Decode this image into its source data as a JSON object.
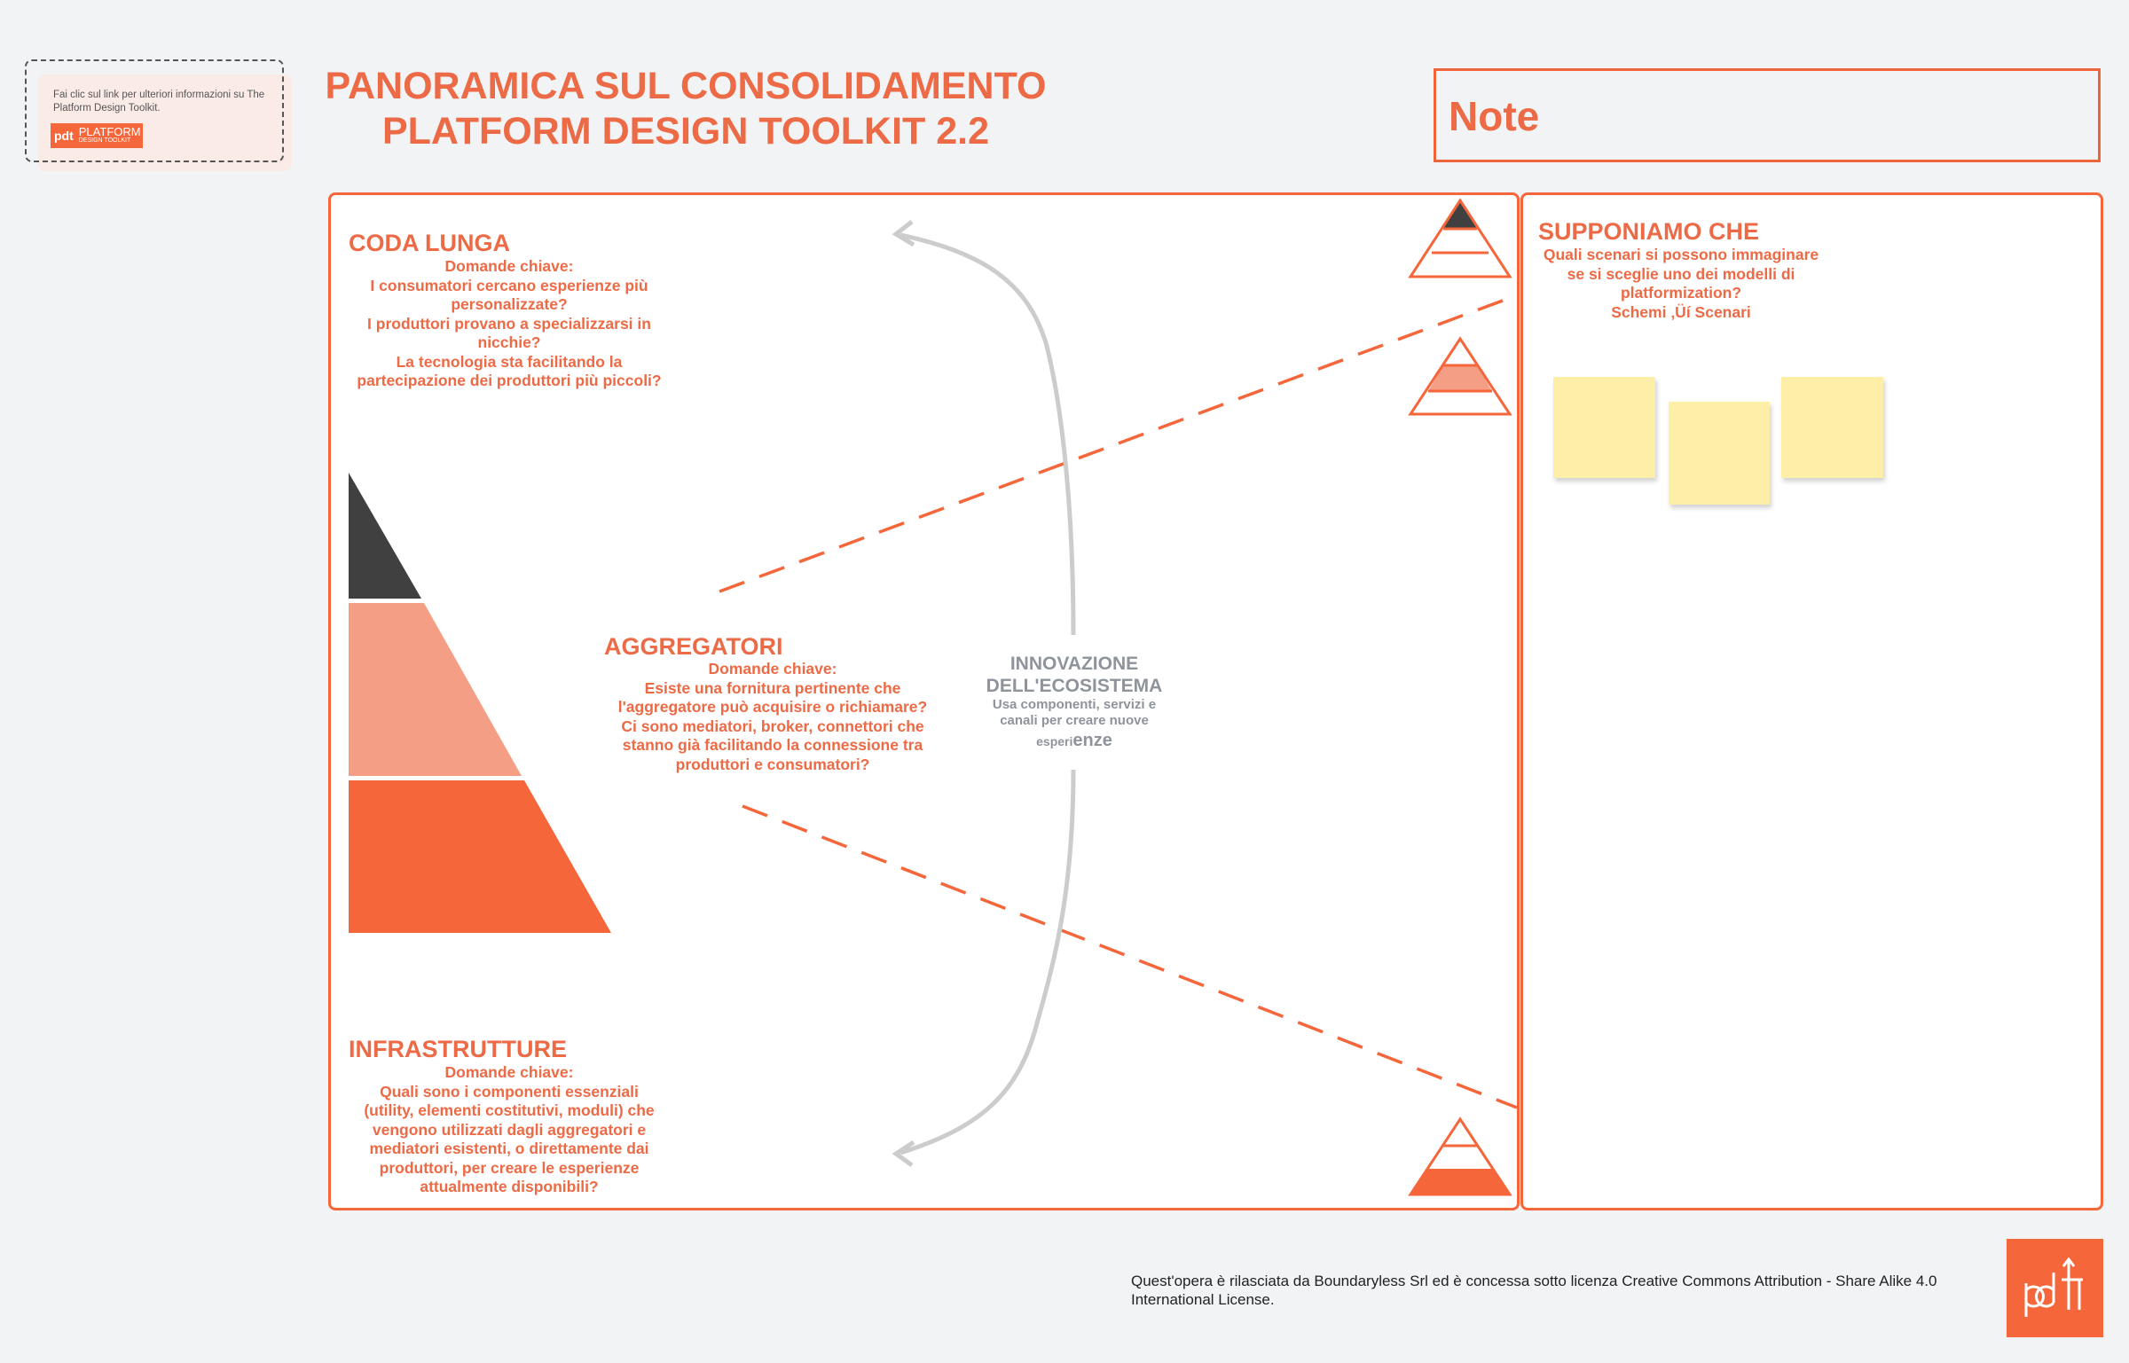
{
  "info_card": {
    "text": "Fai clic sul link per ulteriori informazioni su The Platform Design Toolkit.",
    "badge_line1": "PLATFORM",
    "badge_line2": "DESIGN TOOLKIT",
    "badge_logo": "pdt"
  },
  "header": {
    "title_line1": "PANORAMICA SUL CONSOLIDAMENTO",
    "title_line2": "PLATFORM DESIGN TOOLKIT 2.2"
  },
  "note": {
    "title": "Note"
  },
  "sections": {
    "coda_lunga": {
      "heading": "CODA LUNGA",
      "lines": [
        "Domande chiave:",
        "I consumatori cercano esperienze più",
        "personalizzate?",
        "I produttori provano a specializzarsi in",
        "nicchie?",
        "La tecnologia sta facilitando la",
        "partecipazione dei produttori più piccoli?"
      ]
    },
    "aggregatori": {
      "heading": "AGGREGATORI",
      "lines": [
        "Domande chiave:",
        "Esiste una fornitura pertinente che",
        "l'aggregatore può acquisire o richiamare?",
        "Ci sono mediatori, broker, connettori che",
        "stanno già facilitando la connessione tra",
        "produttori e consumatori?"
      ]
    },
    "innovazione": {
      "heading_line1": "INNOVAZIONE",
      "heading_line2": "DELL'ECOSISTEMA",
      "line1": "Usa componenti, servizi e",
      "line2": "canali per creare nuove",
      "line3a": "esperi",
      "line3b": "enze"
    },
    "infrastrutture": {
      "heading": "INFRASTRUTTURE",
      "lines": [
        "Domande chiave:",
        "Quali sono i componenti essenziali",
        "(utility, elementi costitutivi, moduli) che",
        "vengono utilizzati dagli aggregatori e",
        "mediatori esistenti, o direttamente dai",
        "produttori, per creare le esperienze",
        "attualmente disponibili?"
      ]
    },
    "supponiamo": {
      "heading": "SUPPONIAMO CHE",
      "lines": [
        "Quali scenari si possono immaginare",
        "se si sceglie uno dei modelli di",
        "platformization?",
        "Schemi ‚Üí Scenari"
      ]
    }
  },
  "footer": {
    "license": "Quest'opera è rilasciata da Boundaryless Srl ed è concessa sotto licenza Creative Commons Attribution - Share Alike 4.0 International License.",
    "logo": "pdt"
  },
  "colors": {
    "accent": "#f5663a",
    "text_accent": "#ec6a45",
    "dark_band": "#404040",
    "light_band": "#f49f85",
    "sticky": "#fdeea8",
    "arrow": "#cccccc",
    "background": "#f2f3f5"
  }
}
